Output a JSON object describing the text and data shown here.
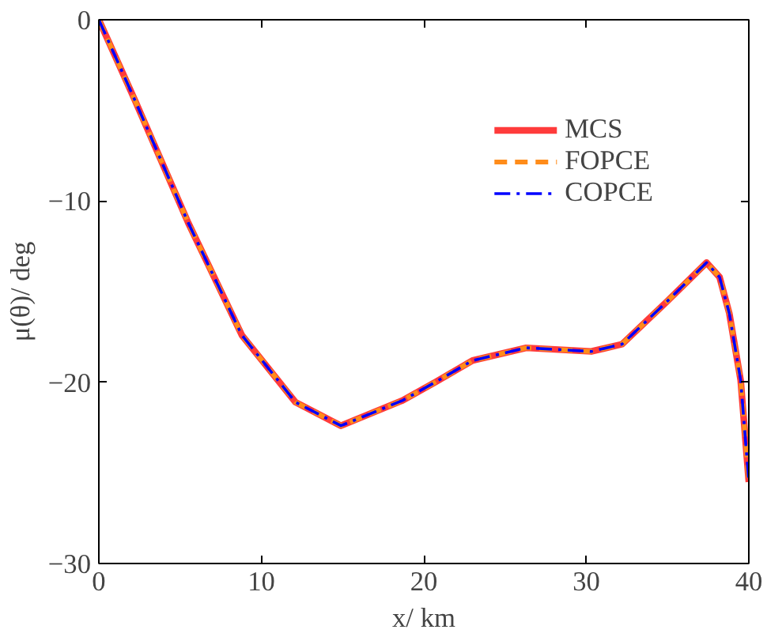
{
  "chart_data": {
    "type": "line",
    "xlabel": "x/ km",
    "ylabel": "μ(θ)/ deg",
    "x": [
      0,
      2.2,
      5.5,
      8.8,
      12.1,
      14.9,
      18.7,
      20.7,
      23.0,
      26.3,
      30.3,
      32.2,
      34.9,
      37.4,
      38.2,
      38.8,
      39.5,
      40
    ],
    "series": [
      {
        "name": "MCS",
        "color": "#ff3b3b",
        "line_style": "solid",
        "values": [
          0,
          -4.4,
          -11.2,
          -17.4,
          -21.1,
          -22.4,
          -21.0,
          -20.0,
          -18.8,
          -18.1,
          -18.3,
          -17.9,
          -15.6,
          -13.4,
          -14.2,
          -16.2,
          -19.9,
          -25.5
        ]
      },
      {
        "name": "FOPCE",
        "color": "#ff8c1a",
        "line_style": "dashed",
        "values": [
          0,
          -4.4,
          -11.2,
          -17.4,
          -21.1,
          -22.4,
          -21.0,
          -20.0,
          -18.8,
          -18.1,
          -18.3,
          -17.9,
          -15.6,
          -13.4,
          -14.2,
          -16.2,
          -19.9,
          -25.5
        ]
      },
      {
        "name": "COPCE",
        "color": "#0000ff",
        "line_style": "dashdot",
        "values": [
          0,
          -4.4,
          -11.2,
          -17.4,
          -21.1,
          -22.4,
          -21.0,
          -20.0,
          -18.8,
          -18.1,
          -18.3,
          -17.9,
          -15.6,
          -13.4,
          -14.2,
          -16.2,
          -19.9,
          -25.5
        ]
      }
    ],
    "xlim": [
      0,
      40
    ],
    "ylim": [
      -30,
      0
    ],
    "xticks": [
      0,
      10,
      20,
      30,
      40
    ],
    "yticks": [
      0,
      -10,
      -20,
      -30
    ],
    "grid": false,
    "legend": "top right"
  }
}
